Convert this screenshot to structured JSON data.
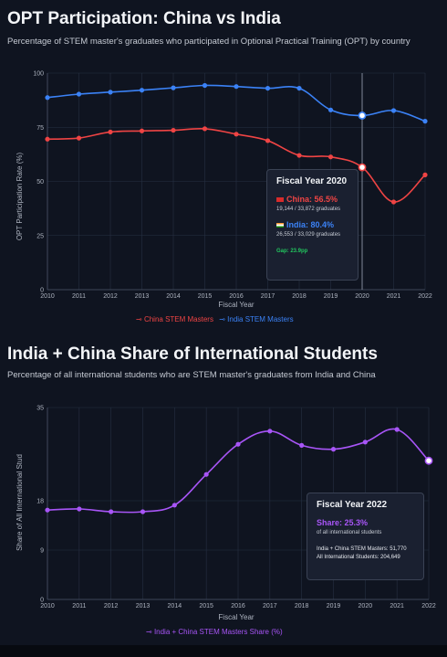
{
  "chart1": {
    "title": "OPT Participation: China vs India",
    "subtitle": "Percentage of STEM master's graduates who participated in Optional Practical Training (OPT) by country",
    "tooltip": {
      "title": "Fiscal Year 2020",
      "china_label": "China: 56.5%",
      "china_sub": "19,144 / 33,872 graduates",
      "india_label": "India: 80.4%",
      "india_sub": "26,553 / 33,029 graduates",
      "gap": "Gap: 23.9pp"
    },
    "legend": [
      "China STEM Masters",
      "India STEM Masters"
    ]
  },
  "chart2": {
    "title": "India + China Share of International Students",
    "subtitle": "Percentage of all international students who are STEM master's graduates from India and China",
    "tooltip": {
      "title": "Fiscal Year 2022",
      "share_label": "Share: 25.3%",
      "share_sub": "of all international students",
      "line1": "India + China STEM Masters: 51,770",
      "line2": "All International Students: 204,649"
    },
    "legend": [
      "India + China STEM Masters Share (%)"
    ]
  },
  "colors": {
    "china": "#ef4444",
    "india": "#3b82f6",
    "share": "#a855f7",
    "grid": "#263042",
    "axis_text": "#aeb4c0",
    "hover_line": "#9aa3b2"
  },
  "chart_data": [
    {
      "type": "line",
      "title": "OPT Participation: China vs India",
      "xlabel": "Fiscal Year",
      "ylabel": "OPT Participation Rate (%)",
      "x": [
        "2010",
        "2011",
        "2012",
        "2013",
        "2014",
        "2015",
        "2016",
        "2017",
        "2018",
        "2019",
        "2020",
        "2021",
        "2022"
      ],
      "ylim": [
        0,
        100
      ],
      "yticks": [
        0,
        25,
        50,
        75,
        100
      ],
      "grid": true,
      "legend": "bottom",
      "hover_index": 10,
      "series": [
        {
          "name": "China STEM Masters",
          "color": "#ef4444",
          "values": [
            69.5,
            70,
            72.8,
            73.3,
            73.6,
            74.3,
            71.8,
            68.8,
            62,
            61.3,
            56.5,
            40.5,
            53
          ]
        },
        {
          "name": "India STEM Masters",
          "color": "#3b82f6",
          "values": [
            88.7,
            90.3,
            91.2,
            92.1,
            93.2,
            94.3,
            93.8,
            93,
            93,
            83,
            80.4,
            82.7,
            77.8
          ]
        }
      ]
    },
    {
      "type": "line",
      "title": "India + China Share of International Students",
      "xlabel": "Fiscal Year",
      "ylabel": "Share of All International Stud",
      "x": [
        "2010",
        "2011",
        "2012",
        "2013",
        "2014",
        "2015",
        "2016",
        "2017",
        "2018",
        "2019",
        "2020",
        "2021",
        "2022"
      ],
      "ylim": [
        0,
        35
      ],
      "yticks": [
        0,
        9,
        18,
        35
      ],
      "grid": true,
      "legend": "bottom",
      "hover_index": 12,
      "series": [
        {
          "name": "India + China STEM Masters Share (%)",
          "color": "#a855f7",
          "values": [
            16.3,
            16.5,
            16,
            16,
            17.2,
            22.8,
            28.3,
            30.7,
            28.1,
            27.4,
            28.7,
            31,
            25.3
          ]
        }
      ]
    }
  ]
}
